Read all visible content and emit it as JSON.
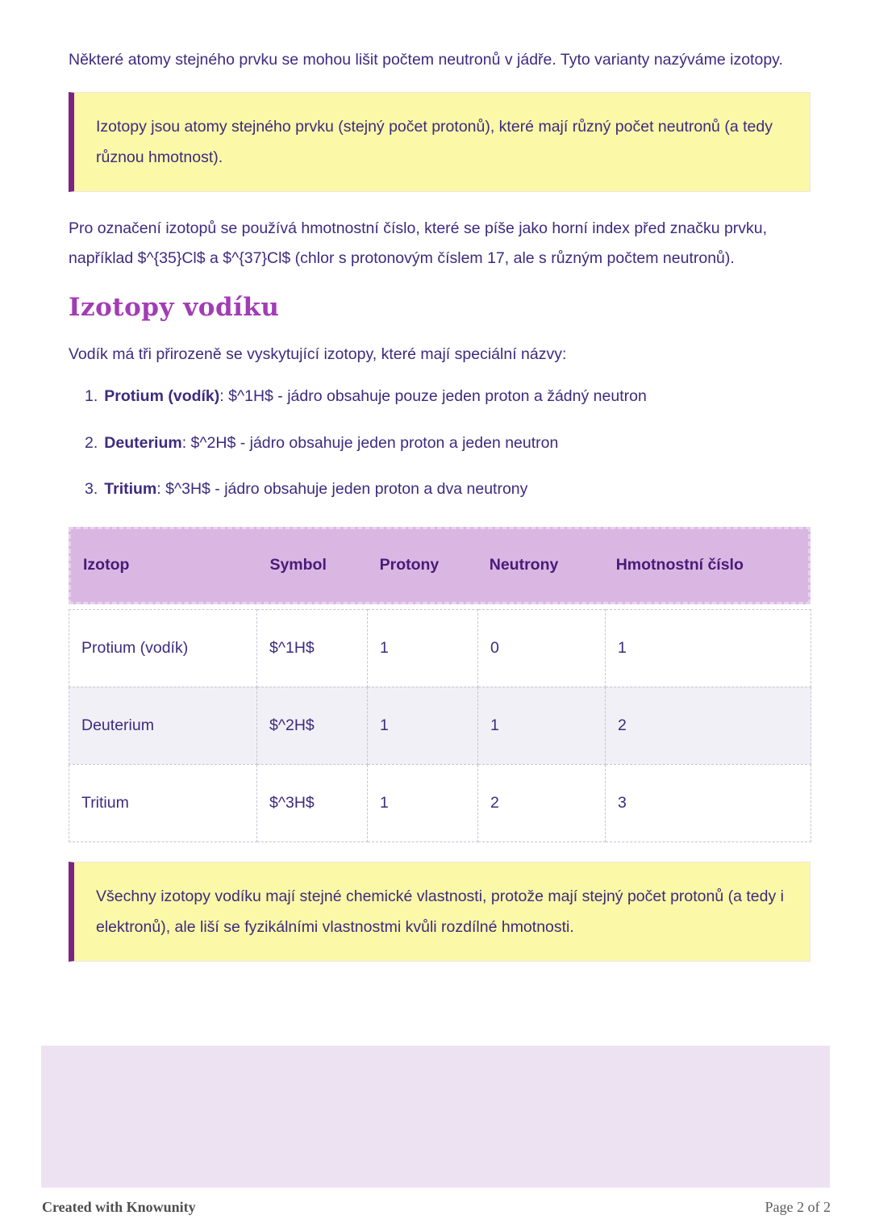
{
  "content": {
    "intro_paragraph": "Některé atomy stejného prvku se mohou lišit počtem neutronů v jádře. Tyto varianty nazýváme izotopy.",
    "definition_callout": "Izotopy jsou atomy stejného prvku (stejný počet protonů), které mají různý počet neutronů (a tedy různou hmotnost).",
    "notation_paragraph": "Pro označení izotopů se používá hmotnostní číslo, které se píše jako horní index před značku prvku, například $^{35}Cl$ a $^{37}Cl$ (chlor s protonovým číslem 17, ale s různým počtem neutronů).",
    "section_heading": "Izotopy vodíku",
    "hydrogen_paragraph": "Vodík má tři přirozeně se vyskytující izotopy, které mají speciální názvy:",
    "isotope_list": [
      {
        "number": "1.",
        "name": "Protium (vodík)",
        "rest": ": $^1H$ - jádro obsahuje pouze jeden proton a žádný neutron"
      },
      {
        "number": "2.",
        "name": "Deuterium",
        "rest": ": $^2H$ - jádro obsahuje jeden proton a jeden neutron"
      },
      {
        "number": "3.",
        "name": "Tritium",
        "rest": ": $^3H$ - jádro obsahuje jeden proton a dva neutrony"
      }
    ],
    "table": {
      "headers": [
        "Izotop",
        "Symbol",
        "Protony",
        "Neutrony",
        "Hmotnostní číslo"
      ],
      "rows": [
        [
          "Protium (vodík)",
          "$^1H$",
          "1",
          "0",
          "1"
        ],
        [
          "Deuterium",
          "$^2H$",
          "1",
          "1",
          "2"
        ],
        [
          "Tritium",
          "$^3H$",
          "1",
          "2",
          "3"
        ]
      ]
    },
    "properties_callout": "Všechny izotopy vodíku mají stejné chemické vlastnosti, protože mají stejný počet protonů (a tedy i elektronů), ale liší se fyzikálními vlastnostmi kvůli rozdílné hmotnosti."
  },
  "footer": {
    "left": "Created with Knowunity",
    "right": "Page 2 of 2"
  },
  "colors": {
    "body_text": "#3d2b7e",
    "heading_accent": "#a23cb5",
    "callout_background": "#fbf8a7",
    "callout_border": "#7b2483",
    "table_header_background": "#d9b7e2",
    "table_header_text": "#4a1a78",
    "table_alt_row_background": "#f1f0f6",
    "bottom_box_background": "#ede2f2",
    "footer_text": "#595959"
  }
}
